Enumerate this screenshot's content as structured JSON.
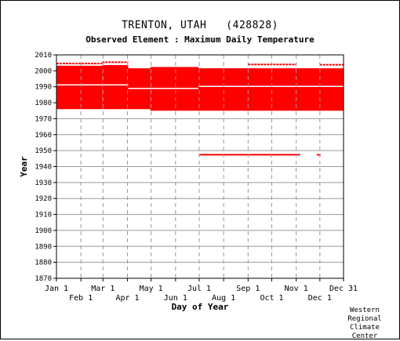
{
  "header": {
    "station_title": "TRENTON, UTAH   (428828)",
    "element_title": "Observed Element : Maximum Daily Temperature"
  },
  "credit": {
    "line1": "Western",
    "line2": "Regional",
    "line3": "Climate",
    "line4": "Center"
  },
  "colors": {
    "data": "#ff0000",
    "grid": "#999999",
    "axis": "#000000",
    "background": "#ffffff"
  },
  "chart_data": {
    "type": "heatmap",
    "description_axes": "x = day of year, y = year",
    "xlabel": "Day of Year",
    "ylabel": "Year",
    "xlim": [
      1,
      365
    ],
    "ylim": [
      1870,
      2010
    ],
    "y_ticks": [
      1870,
      1880,
      1890,
      1900,
      1910,
      1920,
      1930,
      1940,
      1950,
      1960,
      1970,
      1980,
      1990,
      2000,
      2010
    ],
    "x_ticks_top": [
      {
        "label": "Jan 1",
        "day": 1
      },
      {
        "label": "Mar 1",
        "day": 60
      },
      {
        "label": "May 1",
        "day": 121
      },
      {
        "label": "Jul 1",
        "day": 182
      },
      {
        "label": "Sep 1",
        "day": 244
      },
      {
        "label": "Nov 1",
        "day": 305
      },
      {
        "label": "Dec 31",
        "day": 365
      }
    ],
    "x_ticks_bottom": [
      {
        "label": "Feb 1",
        "day": 32
      },
      {
        "label": "Apr 1",
        "day": 91
      },
      {
        "label": "Jun 1",
        "day": 152
      },
      {
        "label": "Aug 1",
        "day": 213
      },
      {
        "label": "Oct 1",
        "day": 274
      },
      {
        "label": "Dec 1",
        "day": 335
      }
    ],
    "grid_vertical_dashed": true,
    "grid_horizontal": true,
    "blocks": [
      {
        "day_start": 1,
        "day_end": 59,
        "year_start": 1976.0,
        "year_end": 2003.2
      },
      {
        "day_start": 59,
        "day_end": 92,
        "year_start": 1976.0,
        "year_end": 2003.6
      },
      {
        "day_start": 92,
        "day_end": 120,
        "year_start": 1976.0,
        "year_end": 2001.6
      },
      {
        "day_start": 120,
        "day_end": 181,
        "year_start": 1975.0,
        "year_end": 2002.4
      },
      {
        "day_start": 181,
        "day_end": 365,
        "year_start": 1975.0,
        "year_end": 2001.6
      }
    ],
    "ticks_marks": [
      {
        "day_start": 1,
        "day_end": 59,
        "year": 2004.6
      },
      {
        "day_start": 59,
        "day_end": 92,
        "year": 2005.4
      },
      {
        "day_start": 244,
        "day_end": 305,
        "year": 2004.0
      },
      {
        "day_start": 335,
        "day_end": 365,
        "year": 2003.8
      }
    ],
    "lines": [
      {
        "day_start": 182,
        "day_end": 310,
        "year": 1947.4
      },
      {
        "day_start": 331,
        "day_end": 336,
        "year": 1947.4
      }
    ],
    "gaps": [
      {
        "day_start": 1,
        "day_end": 92,
        "year": 1991.2
      },
      {
        "day_start": 92,
        "day_end": 181,
        "year": 1989.0
      },
      {
        "day_start": 181,
        "day_end": 365,
        "year": 1990.2
      }
    ]
  }
}
